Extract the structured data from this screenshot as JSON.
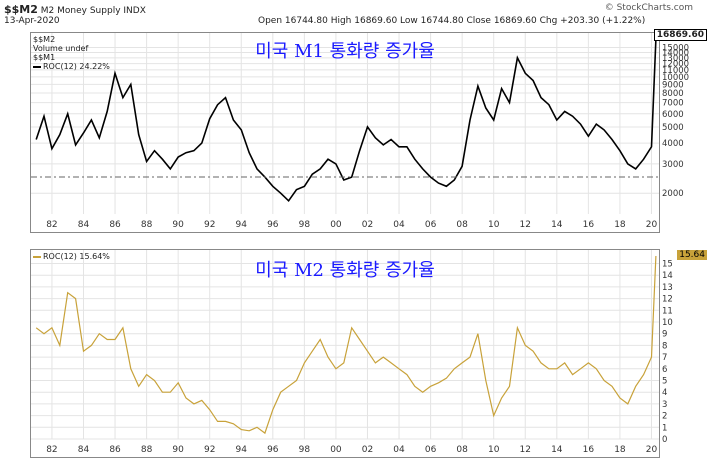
{
  "header": {
    "symbol": "$$M2",
    "name": "M2 Money Supply",
    "exchange": "INDX",
    "date": "13-Apr-2020",
    "ohlc": "Open 16744.80  High 16869.60  Low 16744.80  Close 16869.60  Chg +203.30 (+1.22%)",
    "watermark": "© StockCharts.com"
  },
  "panel1": {
    "title_overlay": "미국 M1 통화량 증가율",
    "legend": [
      "$$M2",
      "Volume undef",
      "$$M1",
      "ROC(12) 24.22%"
    ],
    "last_value": "16869.60"
  },
  "panel2": {
    "title_overlay": "미국 M2 통화량 증가율",
    "legend": "ROC(12) 15.64%",
    "last_value": "15.64"
  },
  "colors": {
    "line1": "#000000",
    "line2": "#c8a23a",
    "overlay": "#1a1aff"
  },
  "chart_data": [
    {
      "type": "line",
      "title": "미국 M1 통화량 증가율",
      "y_scale": "log",
      "ylim": [
        1500,
        16869.6
      ],
      "y_ticks": [
        2000,
        3000,
        4000,
        5000,
        6000,
        7000,
        8000,
        9000,
        10000,
        11000,
        12000,
        13000,
        14000,
        15000
      ],
      "x_ticks": [
        "82",
        "84",
        "86",
        "88",
        "90",
        "92",
        "94",
        "96",
        "98",
        "00",
        "02",
        "04",
        "06",
        "08",
        "10",
        "12",
        "14",
        "16",
        "18",
        "20"
      ],
      "series": [
        {
          "name": "ROC(12)",
          "x": [
            1981.0,
            1981.5,
            1982.0,
            1982.5,
            1983.0,
            1983.5,
            1984.0,
            1984.5,
            1985.0,
            1985.5,
            1986.0,
            1986.5,
            1987.0,
            1987.5,
            1988.0,
            1988.5,
            1989.0,
            1989.5,
            1990.0,
            1990.5,
            1991.0,
            1991.5,
            1992.0,
            1992.5,
            1993.0,
            1993.5,
            1994.0,
            1994.5,
            1995.0,
            1995.5,
            1996.0,
            1996.5,
            1997.0,
            1997.5,
            1998.0,
            1998.5,
            1999.0,
            1999.5,
            2000.0,
            2000.5,
            2001.0,
            2001.5,
            2002.0,
            2002.5,
            2003.0,
            2003.5,
            2004.0,
            2004.5,
            2005.0,
            2005.5,
            2006.0,
            2006.5,
            2007.0,
            2007.5,
            2008.0,
            2008.5,
            2009.0,
            2009.5,
            2010.0,
            2010.5,
            2011.0,
            2011.5,
            2012.0,
            2012.5,
            2013.0,
            2013.5,
            2014.0,
            2014.5,
            2015.0,
            2015.5,
            2016.0,
            2016.5,
            2017.0,
            2017.5,
            2018.0,
            2018.5,
            2019.0,
            2019.5,
            2020.0,
            2020.28
          ],
          "values": [
            4200,
            5800,
            3700,
            4500,
            6000,
            3900,
            4600,
            5500,
            4300,
            6200,
            10500,
            7500,
            9000,
            4500,
            3100,
            3600,
            3200,
            2800,
            3300,
            3500,
            3600,
            4000,
            5600,
            6800,
            7500,
            5500,
            4800,
            3500,
            2800,
            2500,
            2200,
            2000,
            1800,
            2100,
            2200,
            2600,
            2800,
            3200,
            3000,
            2400,
            2500,
            3600,
            5000,
            4300,
            3900,
            4200,
            3800,
            3800,
            3200,
            2800,
            2500,
            2300,
            2200,
            2400,
            2900,
            5500,
            8800,
            6500,
            5500,
            8500,
            7000,
            13000,
            10500,
            9500,
            7500,
            6800,
            5500,
            6200,
            5800,
            5200,
            4400,
            5200,
            4800,
            4200,
            3600,
            3000,
            2800,
            3200,
            3800,
            16869.6
          ]
        }
      ]
    },
    {
      "type": "line",
      "title": "미국 M2 통화량 증가율",
      "ylim": [
        0,
        15.64
      ],
      "y_ticks": [
        0,
        1,
        2,
        3,
        4,
        5,
        6,
        7,
        8,
        9,
        10,
        11,
        12,
        13,
        14,
        15
      ],
      "x_ticks": [
        "82",
        "84",
        "86",
        "88",
        "90",
        "92",
        "94",
        "96",
        "98",
        "00",
        "02",
        "04",
        "06",
        "08",
        "10",
        "12",
        "14",
        "16",
        "18",
        "20"
      ],
      "series": [
        {
          "name": "ROC(12)",
          "x": [
            1981.0,
            1981.5,
            1982.0,
            1982.5,
            1983.0,
            1983.5,
            1984.0,
            1984.5,
            1985.0,
            1985.5,
            1986.0,
            1986.5,
            1987.0,
            1987.5,
            1988.0,
            1988.5,
            1989.0,
            1989.5,
            1990.0,
            1990.5,
            1991.0,
            1991.5,
            1992.0,
            1992.5,
            1993.0,
            1993.5,
            1994.0,
            1994.5,
            1995.0,
            1995.5,
            1996.0,
            1996.5,
            1997.0,
            1997.5,
            1998.0,
            1998.5,
            1999.0,
            1999.5,
            2000.0,
            2000.5,
            2001.0,
            2001.5,
            2002.0,
            2002.5,
            2003.0,
            2003.5,
            2004.0,
            2004.5,
            2005.0,
            2005.5,
            2006.0,
            2006.5,
            2007.0,
            2007.5,
            2008.0,
            2008.5,
            2009.0,
            2009.5,
            2010.0,
            2010.5,
            2011.0,
            2011.5,
            2012.0,
            2012.5,
            2013.0,
            2013.5,
            2014.0,
            2014.5,
            2015.0,
            2015.5,
            2016.0,
            2016.5,
            2017.0,
            2017.5,
            2018.0,
            2018.5,
            2019.0,
            2019.5,
            2020.0,
            2020.28
          ],
          "values": [
            9.5,
            9.0,
            9.5,
            8.0,
            12.5,
            12.0,
            7.5,
            8.0,
            9.0,
            8.5,
            8.5,
            9.5,
            6.0,
            4.5,
            5.5,
            5.0,
            4.0,
            4.0,
            4.8,
            3.5,
            3.0,
            3.3,
            2.5,
            1.5,
            1.5,
            1.3,
            0.8,
            0.7,
            1.0,
            0.5,
            2.5,
            4.0,
            4.5,
            5.0,
            6.5,
            7.5,
            8.5,
            7.0,
            6.0,
            6.5,
            9.5,
            8.5,
            7.5,
            6.5,
            7.0,
            6.5,
            6.0,
            5.5,
            4.5,
            4.0,
            4.5,
            4.8,
            5.2,
            6.0,
            6.5,
            7.0,
            9.0,
            5.0,
            2.0,
            3.5,
            4.5,
            9.5,
            8.0,
            7.5,
            6.5,
            6.0,
            6.0,
            6.5,
            5.5,
            6.0,
            6.5,
            6.0,
            5.0,
            4.5,
            3.5,
            3.0,
            4.5,
            5.5,
            7.0,
            15.64
          ]
        }
      ]
    }
  ]
}
